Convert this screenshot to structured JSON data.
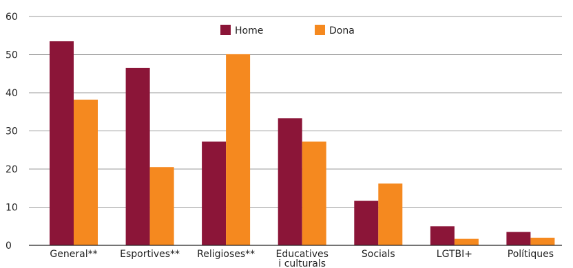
{
  "chart_data": {
    "type": "bar",
    "title": "",
    "xlabel": "",
    "ylabel": "",
    "ylim": [
      0,
      60
    ],
    "yticks": [
      0,
      10,
      20,
      30,
      40,
      50,
      60
    ],
    "grid": true,
    "legend_position": "top-center",
    "categories": [
      [
        "General**"
      ],
      [
        "Esportives**"
      ],
      [
        "Religioses**"
      ],
      [
        "Educatives",
        "i culturals"
      ],
      [
        "Socials"
      ],
      [
        "LGTBI+"
      ],
      [
        "Polítiques"
      ]
    ],
    "series": [
      {
        "name": "Home",
        "color": "#8b1538",
        "values": [
          53.5,
          46.5,
          27.2,
          33.3,
          11.7,
          5.0,
          3.5
        ]
      },
      {
        "name": "Dona",
        "color": "#f5891f",
        "values": [
          38.2,
          20.5,
          50.1,
          27.2,
          16.2,
          1.7,
          2.0
        ]
      }
    ]
  }
}
